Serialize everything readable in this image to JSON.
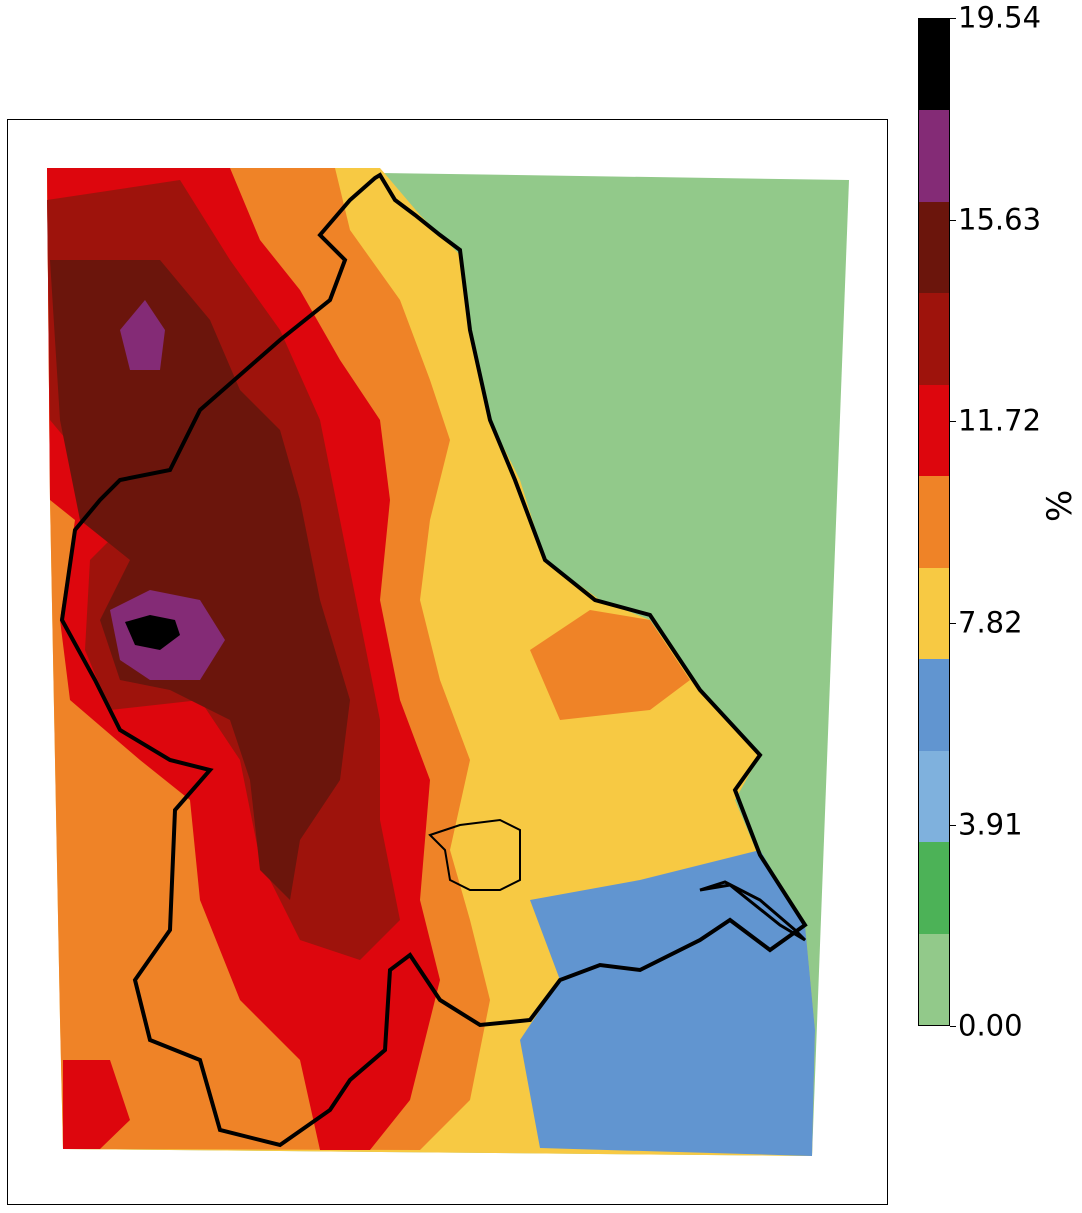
{
  "colorbar": {
    "unit": "%",
    "tick_labels": [
      "0.00",
      "3.91",
      "7.82",
      "11.72",
      "15.63",
      "19.54"
    ],
    "min": 0.0,
    "max": 19.54,
    "colors": [
      "#92c98a",
      "#4cb257",
      "#7fb1dd",
      "#6195d0",
      "#f7c943",
      "#ef8327",
      "#dd060d",
      "#9e130c",
      "#6b150c",
      "#842b76",
      "#000000"
    ]
  },
  "map": {
    "sea_color": "#92c98a",
    "coastline_color": "#000000"
  }
}
